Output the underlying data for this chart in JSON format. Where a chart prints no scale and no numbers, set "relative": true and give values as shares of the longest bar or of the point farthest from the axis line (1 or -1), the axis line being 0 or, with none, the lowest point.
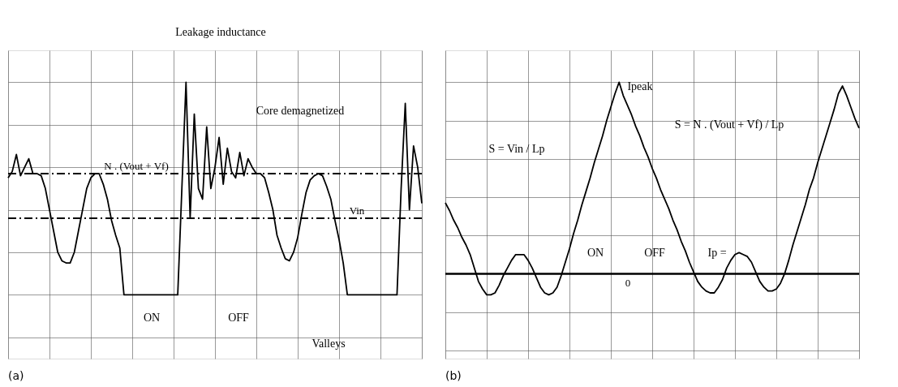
{
  "chart_data": [
    {
      "type": "line",
      "relative": true,
      "grid": true,
      "categories": [
        null,
        null,
        null,
        null,
        null,
        null,
        null,
        null,
        null,
        null,
        null,
        null,
        null,
        null,
        null,
        null,
        null,
        null,
        null,
        null,
        null,
        null,
        null,
        null,
        null,
        null,
        null,
        null,
        null,
        null,
        null,
        null,
        null,
        null,
        null,
        null,
        null,
        null,
        null,
        null,
        null,
        null,
        null,
        null,
        null,
        null,
        null,
        null,
        null,
        null,
        null,
        null,
        null,
        null,
        null,
        null,
        null,
        null,
        null,
        null,
        null,
        null,
        null,
        null,
        null,
        null,
        null,
        null,
        null,
        null,
        null,
        null,
        null,
        null,
        null,
        null,
        null,
        null,
        null,
        null,
        null,
        null,
        null,
        null,
        null,
        null,
        null,
        null,
        null,
        null,
        null,
        null,
        null,
        null,
        null,
        null,
        null,
        null,
        null,
        null,
        null
      ],
      "series": [
        {
          "color": "#000000",
          "values": [
            0.55,
            0.58,
            0.66,
            0.56,
            0.6,
            0.64,
            0.57,
            0.57,
            0.56,
            0.5,
            0.4,
            0.3,
            0.2,
            0.16,
            0.15,
            0.15,
            0.2,
            0.3,
            0.4,
            0.5,
            0.55,
            0.57,
            0.57,
            0.52,
            0.45,
            0.35,
            0.28,
            0.22,
            0,
            0,
            0,
            0,
            0,
            0,
            0,
            0,
            0,
            0,
            0,
            0,
            0,
            0,
            0.5,
            1.0,
            0.36,
            0.85,
            0.5,
            0.45,
            0.79,
            0.5,
            0.6,
            0.74,
            0.52,
            0.69,
            0.58,
            0.55,
            0.67,
            0.56,
            0.64,
            0.6,
            0.57,
            0.57,
            0.55,
            0.48,
            0.4,
            0.28,
            0.22,
            0.17,
            0.16,
            0.2,
            0.27,
            0.38,
            0.48,
            0.54,
            0.56,
            0.57,
            0.56,
            0.51,
            0.45,
            0.35,
            0.26,
            0.15,
            0,
            0,
            0,
            0,
            0,
            0,
            0,
            0,
            0,
            0,
            0,
            0,
            0,
            0.5,
            0.9,
            0.4,
            0.7,
            0.6,
            0.43
          ]
        }
      ],
      "ref_lines": [
        {
          "axis": "y",
          "value": 0.57,
          "label": "N . (Vout + Vf)",
          "line_style": "dashed"
        },
        {
          "axis": "y",
          "value": 0.36,
          "label": "Vin",
          "line_style": "dashed"
        }
      ],
      "annotations": [
        "Leakage inductance",
        "Core demagnetized",
        "ON",
        "OFF",
        "Valleys",
        "(a)"
      ]
    },
    {
      "type": "line",
      "relative": true,
      "grid": true,
      "categories": [
        null,
        null,
        null,
        null,
        null,
        null,
        null,
        null,
        null,
        null,
        null,
        null,
        null,
        null,
        null,
        null,
        null,
        null,
        null,
        null,
        null,
        null,
        null,
        null,
        null,
        null,
        null,
        null,
        null,
        null,
        null,
        null,
        null,
        null,
        null,
        null,
        null,
        null,
        null,
        null,
        null,
        null,
        null,
        null,
        null,
        null,
        null,
        null,
        null,
        null,
        null,
        null,
        null,
        null,
        null,
        null,
        null,
        null,
        null,
        null,
        null,
        null,
        null,
        null,
        null,
        null,
        null,
        null,
        null,
        null,
        null,
        null,
        null,
        null,
        null,
        null,
        null,
        null,
        null,
        null,
        null,
        null,
        null,
        null,
        null,
        null,
        null,
        null,
        null,
        null,
        null,
        null,
        null,
        null,
        null,
        null,
        null,
        null,
        null,
        null,
        null
      ],
      "series": [
        {
          "color": "#000000",
          "values": [
            0.37,
            0.33,
            0.28,
            0.24,
            0.19,
            0.15,
            0.1,
            0.03,
            -0.04,
            -0.08,
            -0.11,
            -0.11,
            -0.1,
            -0.06,
            -0.01,
            0.03,
            0.07,
            0.1,
            0.1,
            0.1,
            0.07,
            0.03,
            -0.02,
            -0.07,
            -0.1,
            -0.11,
            -0.1,
            -0.07,
            -0.01,
            0.06,
            0.13,
            0.21,
            0.28,
            0.36,
            0.43,
            0.5,
            0.58,
            0.65,
            0.72,
            0.8,
            0.87,
            0.94,
            1.0,
            0.93,
            0.88,
            0.83,
            0.77,
            0.72,
            0.66,
            0.61,
            0.55,
            0.5,
            0.44,
            0.39,
            0.34,
            0.28,
            0.23,
            0.17,
            0.12,
            0.06,
            0.01,
            -0.04,
            -0.07,
            -0.09,
            -0.1,
            -0.1,
            -0.07,
            -0.03,
            0.03,
            0.07,
            0.1,
            0.11,
            0.1,
            0.09,
            0.06,
            0.01,
            -0.04,
            -0.07,
            -0.09,
            -0.09,
            -0.08,
            -0.05,
            0.0,
            0.07,
            0.15,
            0.22,
            0.29,
            0.36,
            0.44,
            0.5,
            0.58,
            0.65,
            0.72,
            0.79,
            0.86,
            0.94,
            0.98,
            0.93,
            0.87,
            0.81,
            0.76
          ]
        }
      ],
      "ref_lines": [
        {
          "axis": "y",
          "value": 0,
          "label": "0",
          "line_style": "solid"
        }
      ],
      "annotations": [
        "Ipeak",
        "S = Vin / Lp",
        "S = N . (Vout + Vf) / Lp",
        "ON",
        "OFF",
        "Ip =",
        "(b)"
      ]
    }
  ]
}
